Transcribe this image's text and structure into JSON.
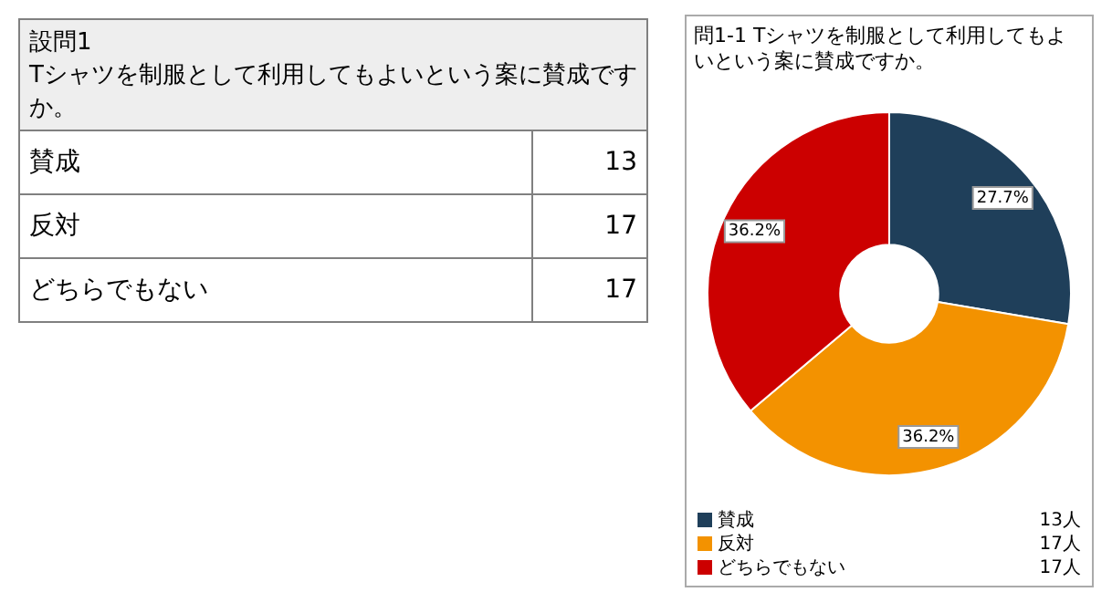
{
  "chart_data": {
    "type": "donut",
    "title": "問1-1 Tシャツを制服として利用してもよいという案に賛成ですか。",
    "categories": [
      "賛成",
      "反対",
      "どちらでもない"
    ],
    "values": [
      27.7,
      36.2,
      36.2
    ],
    "colors": [
      "#1f3f5a",
      "#f39200",
      "#cc0000"
    ],
    "value_labels": [
      "27.7%",
      "36.2%",
      "36.2%"
    ],
    "legend": "bottom",
    "annotations": [
      "設問1",
      "Tシャツを制服として利用してもよいという案に賛成ですか。",
      {
        "text": "13",
        "x": "賛成"
      },
      {
        "text": "17",
        "x": "反対"
      },
      {
        "text": "17",
        "x": "どちらでもない"
      },
      {
        "text": "13人",
        "x": "賛成"
      },
      {
        "text": "17人",
        "x": "反対"
      },
      {
        "text": "17人",
        "x": "どちらでもない"
      }
    ]
  }
}
